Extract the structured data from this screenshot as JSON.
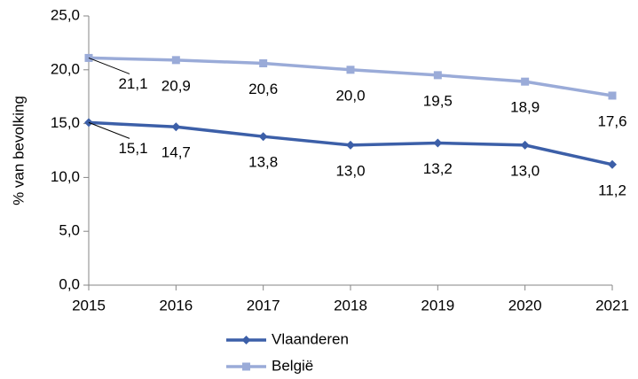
{
  "chart_data": {
    "type": "line",
    "y_label": "% van bevolking",
    "categories": [
      "2015",
      "2016",
      "2017",
      "2018",
      "2019",
      "2020",
      "2021"
    ],
    "series": [
      {
        "name": "Vlaanderen",
        "color": "#3c5fa8",
        "marker": "diamond",
        "values": [
          15.1,
          14.7,
          13.8,
          13.0,
          13.2,
          13.0,
          11.2
        ],
        "value_labels": [
          "15,1",
          "14,7",
          "13,8",
          "13,0",
          "13,2",
          "13,0",
          "11,2"
        ]
      },
      {
        "name": "België",
        "color": "#9aabd8",
        "marker": "square",
        "values": [
          21.1,
          20.9,
          20.6,
          20.0,
          19.5,
          18.9,
          17.6
        ],
        "value_labels": [
          "21,1",
          "20,9",
          "20,6",
          "20,0",
          "19,5",
          "18,9",
          "17,6"
        ]
      }
    ],
    "ylim": [
      0,
      25
    ],
    "yticks": [
      {
        "value": 0,
        "label": "0,0"
      },
      {
        "value": 5,
        "label": "5,0"
      },
      {
        "value": 10,
        "label": "10,0"
      },
      {
        "value": 15,
        "label": "15,0"
      },
      {
        "value": 20,
        "label": "20,0"
      },
      {
        "value": 25,
        "label": "25,0"
      }
    ],
    "grid": false,
    "legend": "bottom"
  }
}
